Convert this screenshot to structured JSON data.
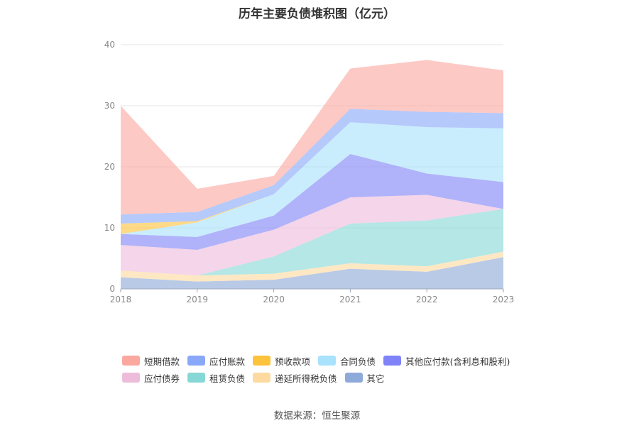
{
  "chart_data": {
    "type": "area",
    "stacked": true,
    "title": "历年主要负债堆积图（亿元）",
    "x": [
      "2018",
      "2019",
      "2020",
      "2021",
      "2022",
      "2023"
    ],
    "ylim": [
      0,
      40
    ],
    "yticks": [
      "0",
      "10",
      "20",
      "30",
      "40"
    ],
    "grid": true,
    "legend_position": "bottom",
    "series": [
      {
        "name": "其它",
        "color": "#8eaad9",
        "values": [
          1.9,
          1.2,
          1.5,
          3.3,
          2.8,
          5.2
        ]
      },
      {
        "name": "递延所得税负债",
        "color": "#fddaa0",
        "values": [
          1.1,
          1.0,
          1.0,
          0.9,
          0.9,
          0.9
        ]
      },
      {
        "name": "租赁负债",
        "color": "#86d8d6",
        "values": [
          0.0,
          0.0,
          2.8,
          6.5,
          7.5,
          7.0
        ]
      },
      {
        "name": "应付债券",
        "color": "#eebcdb",
        "values": [
          4.2,
          4.2,
          4.4,
          4.3,
          4.2,
          0.0
        ]
      },
      {
        "name": "其他应付款(含利息和股利)",
        "color": "#7f83f7",
        "values": [
          1.8,
          2.1,
          2.3,
          7.1,
          3.5,
          4.4
        ]
      },
      {
        "name": "合同负债",
        "color": "#a8e2fc",
        "values": [
          0.0,
          2.4,
          3.5,
          5.2,
          7.6,
          8.8
        ]
      },
      {
        "name": "预收款项",
        "color": "#fdc33c",
        "values": [
          1.7,
          0.2,
          0.0,
          0.0,
          0.0,
          0.0
        ]
      },
      {
        "name": "应付账款",
        "color": "#89a8f9",
        "values": [
          1.5,
          1.5,
          1.5,
          2.2,
          2.5,
          2.5
        ]
      },
      {
        "name": "短期借款",
        "color": "#fba89f",
        "values": [
          17.8,
          3.8,
          1.5,
          6.6,
          8.5,
          7.0
        ]
      }
    ],
    "legend_order": [
      "短期借款",
      "应付账款",
      "预收款项",
      "合同负债",
      "其他应付款(含利息和股利)",
      "应付债券",
      "租赁负债",
      "递延所得税负债",
      "其它"
    ]
  },
  "source": "数据来源：恒生聚源"
}
